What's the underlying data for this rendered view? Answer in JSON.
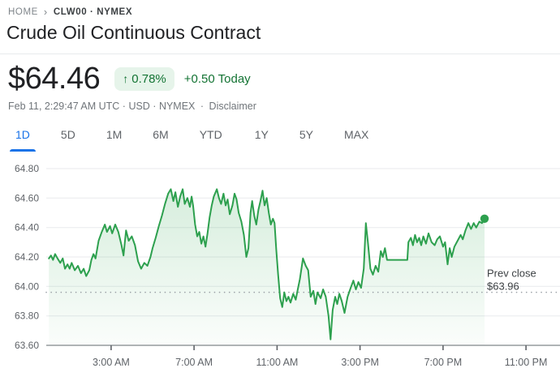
{
  "breadcrumb": {
    "home": "HOME",
    "separator": "›",
    "symbol": "CLW00 · NYMEX"
  },
  "header": {
    "title": "Crude Oil Continuous Contract"
  },
  "quote": {
    "price": "$64.46",
    "change_arrow": "↑",
    "change_percent": "0.78%",
    "change_absolute": "+0.50",
    "change_period": "Today",
    "meta_main": "Feb 11, 2:29:47 AM UTC · USD · NYMEX",
    "meta_separator": "·",
    "disclaimer": "Disclaimer"
  },
  "tabs": [
    {
      "label": "1D",
      "active": true
    },
    {
      "label": "5D",
      "active": false
    },
    {
      "label": "1M",
      "active": false
    },
    {
      "label": "6M",
      "active": false
    },
    {
      "label": "YTD",
      "active": false
    },
    {
      "label": "1Y",
      "active": false
    },
    {
      "label": "5Y",
      "active": false
    },
    {
      "label": "MAX",
      "active": false
    }
  ],
  "colors": {
    "accent_blue": "#1a73e8",
    "green_text": "#137333",
    "badge_bg": "#e6f4ea",
    "line_green": "#2da04e",
    "fill_green": "#34a853",
    "grid": "#e8eaed",
    "axis": "#80868b",
    "tick_label": "#5f6368",
    "dotted": "#9aa0a6",
    "annotation": "#3c4043"
  },
  "chart_data": {
    "type": "line",
    "title": "Crude Oil Continuous Contract intraday price",
    "xlabel": "",
    "ylabel": "",
    "x_unit": "hours since midnight",
    "x_domain": [
      -0.125,
      24.56
    ],
    "ylim": [
      63.6,
      64.8
    ],
    "grid": true,
    "legend_position": "none",
    "y_ticks": [
      64.8,
      64.6,
      64.4,
      64.2,
      64.0,
      63.8,
      63.6
    ],
    "x_ticks": [
      {
        "h": 3,
        "label": "3:00 AM"
      },
      {
        "h": 7,
        "label": "7:00 AM"
      },
      {
        "h": 11,
        "label": "11:00 AM"
      },
      {
        "h": 15,
        "label": "3:00 PM"
      },
      {
        "h": 19,
        "label": "7:00 PM"
      },
      {
        "h": 23,
        "label": "11:00 PM"
      }
    ],
    "prev_close": {
      "value": 63.96,
      "label_line1": "Prev close",
      "label_line2": "$63.96"
    },
    "last_point_marker": true,
    "series": [
      {
        "name": "CLW00",
        "points": [
          [
            0.0,
            64.19
          ],
          [
            0.1,
            64.21
          ],
          [
            0.2,
            64.18
          ],
          [
            0.3,
            64.22
          ],
          [
            0.42,
            64.19
          ],
          [
            0.55,
            64.16
          ],
          [
            0.67,
            64.19
          ],
          [
            0.78,
            64.12
          ],
          [
            0.9,
            64.15
          ],
          [
            1.0,
            64.12
          ],
          [
            1.1,
            64.16
          ],
          [
            1.25,
            64.11
          ],
          [
            1.4,
            64.14
          ],
          [
            1.55,
            64.09
          ],
          [
            1.68,
            64.12
          ],
          [
            1.8,
            64.07
          ],
          [
            1.95,
            64.11
          ],
          [
            2.05,
            64.18
          ],
          [
            2.15,
            64.22
          ],
          [
            2.25,
            64.19
          ],
          [
            2.4,
            64.31
          ],
          [
            2.55,
            64.37
          ],
          [
            2.7,
            64.42
          ],
          [
            2.8,
            64.37
          ],
          [
            2.95,
            64.41
          ],
          [
            3.05,
            64.36
          ],
          [
            3.2,
            64.42
          ],
          [
            3.35,
            64.37
          ],
          [
            3.5,
            64.28
          ],
          [
            3.6,
            64.21
          ],
          [
            3.72,
            64.38
          ],
          [
            3.85,
            64.31
          ],
          [
            4.0,
            64.34
          ],
          [
            4.15,
            64.28
          ],
          [
            4.3,
            64.17
          ],
          [
            4.45,
            64.12
          ],
          [
            4.6,
            64.16
          ],
          [
            4.75,
            64.14
          ],
          [
            4.9,
            64.2
          ],
          [
            5.0,
            64.26
          ],
          [
            5.15,
            64.33
          ],
          [
            5.3,
            64.41
          ],
          [
            5.45,
            64.48
          ],
          [
            5.6,
            64.56
          ],
          [
            5.75,
            64.63
          ],
          [
            5.88,
            64.66
          ],
          [
            6.0,
            64.58
          ],
          [
            6.1,
            64.64
          ],
          [
            6.22,
            64.54
          ],
          [
            6.33,
            64.61
          ],
          [
            6.45,
            64.66
          ],
          [
            6.55,
            64.56
          ],
          [
            6.68,
            64.6
          ],
          [
            6.8,
            64.54
          ],
          [
            6.88,
            64.61
          ],
          [
            6.95,
            64.55
          ],
          [
            7.05,
            64.42
          ],
          [
            7.15,
            64.34
          ],
          [
            7.25,
            64.37
          ],
          [
            7.35,
            64.29
          ],
          [
            7.45,
            64.34
          ],
          [
            7.55,
            64.27
          ],
          [
            7.65,
            64.36
          ],
          [
            7.75,
            64.47
          ],
          [
            7.85,
            64.55
          ],
          [
            7.95,
            64.61
          ],
          [
            8.1,
            64.66
          ],
          [
            8.2,
            64.6
          ],
          [
            8.3,
            64.56
          ],
          [
            8.42,
            64.63
          ],
          [
            8.52,
            64.55
          ],
          [
            8.62,
            64.59
          ],
          [
            8.72,
            64.49
          ],
          [
            8.85,
            64.55
          ],
          [
            8.95,
            64.63
          ],
          [
            9.05,
            64.59
          ],
          [
            9.15,
            64.5
          ],
          [
            9.28,
            64.44
          ],
          [
            9.4,
            64.35
          ],
          [
            9.52,
            64.2
          ],
          [
            9.62,
            64.26
          ],
          [
            9.72,
            64.5
          ],
          [
            9.8,
            64.58
          ],
          [
            9.9,
            64.48
          ],
          [
            10.0,
            64.42
          ],
          [
            10.1,
            64.52
          ],
          [
            10.2,
            64.58
          ],
          [
            10.3,
            64.65
          ],
          [
            10.4,
            64.55
          ],
          [
            10.5,
            64.6
          ],
          [
            10.6,
            64.5
          ],
          [
            10.7,
            64.42
          ],
          [
            10.8,
            64.46
          ],
          [
            10.88,
            64.43
          ],
          [
            10.96,
            64.25
          ],
          [
            11.05,
            64.08
          ],
          [
            11.15,
            63.92
          ],
          [
            11.25,
            63.86
          ],
          [
            11.35,
            63.96
          ],
          [
            11.45,
            63.9
          ],
          [
            11.55,
            63.93
          ],
          [
            11.65,
            63.89
          ],
          [
            11.78,
            63.95
          ],
          [
            11.9,
            63.91
          ],
          [
            12.0,
            63.98
          ],
          [
            12.1,
            64.05
          ],
          [
            12.25,
            64.19
          ],
          [
            12.38,
            64.14
          ],
          [
            12.5,
            64.11
          ],
          [
            12.62,
            63.93
          ],
          [
            12.75,
            63.97
          ],
          [
            12.85,
            63.88
          ],
          [
            12.95,
            63.96
          ],
          [
            13.1,
            63.92
          ],
          [
            13.22,
            63.98
          ],
          [
            13.35,
            63.93
          ],
          [
            13.48,
            63.8
          ],
          [
            13.58,
            63.64
          ],
          [
            13.68,
            63.84
          ],
          [
            13.8,
            63.93
          ],
          [
            13.9,
            63.88
          ],
          [
            14.0,
            63.95
          ],
          [
            14.12,
            63.9
          ],
          [
            14.25,
            63.82
          ],
          [
            14.4,
            63.93
          ],
          [
            14.55,
            63.99
          ],
          [
            14.68,
            64.04
          ],
          [
            14.8,
            63.98
          ],
          [
            14.92,
            64.03
          ],
          [
            15.05,
            63.99
          ],
          [
            15.18,
            64.12
          ],
          [
            15.28,
            64.43
          ],
          [
            15.38,
            64.3
          ],
          [
            15.5,
            64.12
          ],
          [
            15.62,
            64.08
          ],
          [
            15.75,
            64.14
          ],
          [
            15.88,
            64.1
          ],
          [
            16.0,
            64.24
          ],
          [
            16.1,
            64.2
          ],
          [
            16.2,
            64.26
          ],
          [
            16.3,
            64.18
          ],
          [
            16.5,
            64.18
          ],
          [
            16.7,
            64.18
          ],
          [
            16.9,
            64.18
          ],
          [
            17.1,
            64.18
          ],
          [
            17.28,
            64.18
          ],
          [
            17.33,
            64.3
          ],
          [
            17.45,
            64.33
          ],
          [
            17.55,
            64.28
          ],
          [
            17.65,
            64.35
          ],
          [
            17.75,
            64.3
          ],
          [
            17.85,
            64.33
          ],
          [
            17.95,
            64.28
          ],
          [
            18.05,
            64.34
          ],
          [
            18.18,
            64.29
          ],
          [
            18.3,
            64.36
          ],
          [
            18.45,
            64.3
          ],
          [
            18.6,
            64.28
          ],
          [
            18.72,
            64.32
          ],
          [
            18.85,
            64.34
          ],
          [
            19.0,
            64.27
          ],
          [
            19.1,
            64.3
          ],
          [
            19.22,
            64.15
          ],
          [
            19.32,
            64.26
          ],
          [
            19.42,
            64.2
          ],
          [
            19.55,
            64.27
          ],
          [
            19.7,
            64.31
          ],
          [
            19.85,
            64.35
          ],
          [
            19.95,
            64.32
          ],
          [
            20.08,
            64.38
          ],
          [
            20.22,
            64.43
          ],
          [
            20.35,
            64.39
          ],
          [
            20.48,
            64.43
          ],
          [
            20.6,
            64.4
          ],
          [
            20.75,
            64.44
          ],
          [
            20.88,
            64.43
          ],
          [
            21.0,
            64.46
          ]
        ]
      }
    ]
  }
}
